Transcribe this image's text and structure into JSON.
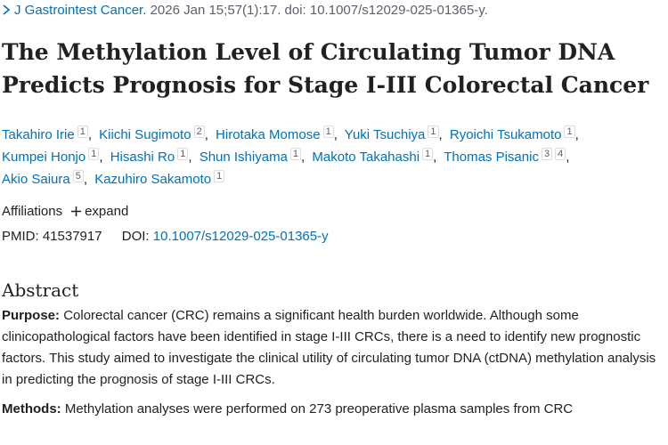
{
  "citation": {
    "journal": "J Gastrointest Cancer.",
    "details": "2026 Jan 15;57(1):17. doi: 10.1007/s12029-025-01365-y."
  },
  "title": "The Methylation Level of Circulating Tumor DNA Predicts Prognosis for Stage I-III Colorectal Cancer",
  "authors": [
    {
      "name": "Takahiro Irie",
      "affiliations": [
        "1"
      ]
    },
    {
      "name": "Kiichi Sugimoto",
      "affiliations": [
        "2"
      ]
    },
    {
      "name": "Hirotaka Momose",
      "affiliations": [
        "1"
      ]
    },
    {
      "name": "Yuki Tsuchiya",
      "affiliations": [
        "1"
      ]
    },
    {
      "name": "Ryoichi Tsukamoto",
      "affiliations": [
        "1"
      ]
    },
    {
      "name": "Kumpei Honjo",
      "affiliations": [
        "1"
      ]
    },
    {
      "name": "Hisashi Ro",
      "affiliations": [
        "1"
      ]
    },
    {
      "name": "Shun Ishiyama",
      "affiliations": [
        "1"
      ]
    },
    {
      "name": "Makoto Takahashi",
      "affiliations": [
        "1"
      ]
    },
    {
      "name": "Thomas Pisanic",
      "affiliations": [
        "3",
        "4"
      ]
    },
    {
      "name": "Akio Saiura",
      "affiliations": [
        "5"
      ]
    },
    {
      "name": "Kazuhiro Sakamoto",
      "affiliations": [
        "1"
      ]
    }
  ],
  "affiliations": {
    "label": "Affiliations",
    "toggle": "expand"
  },
  "identifiers": {
    "pmid_label": "PMID:",
    "pmid": "41537917",
    "doi_label": "DOI:",
    "doi": "10.1007/s12029-025-01365-y"
  },
  "abstract": {
    "heading": "Abstract",
    "paragraphs": [
      {
        "label": "Purpose:",
        "text": "Colorectal cancer (CRC) remains a significant health burden worldwide. Although some clinicopathological factors have been identified in stage I-III CRCs, there is a need to identify new prognostic factors. This study aimed to investigate the clinical utility of circulating tumor DNA (ctDNA) methylation analysis in predicting the prognosis of stage I-III CRCs."
      },
      {
        "label": "Methods:",
        "text": "Methylation analyses were performed on 273 preoperative plasma samples from CRC"
      }
    ]
  }
}
